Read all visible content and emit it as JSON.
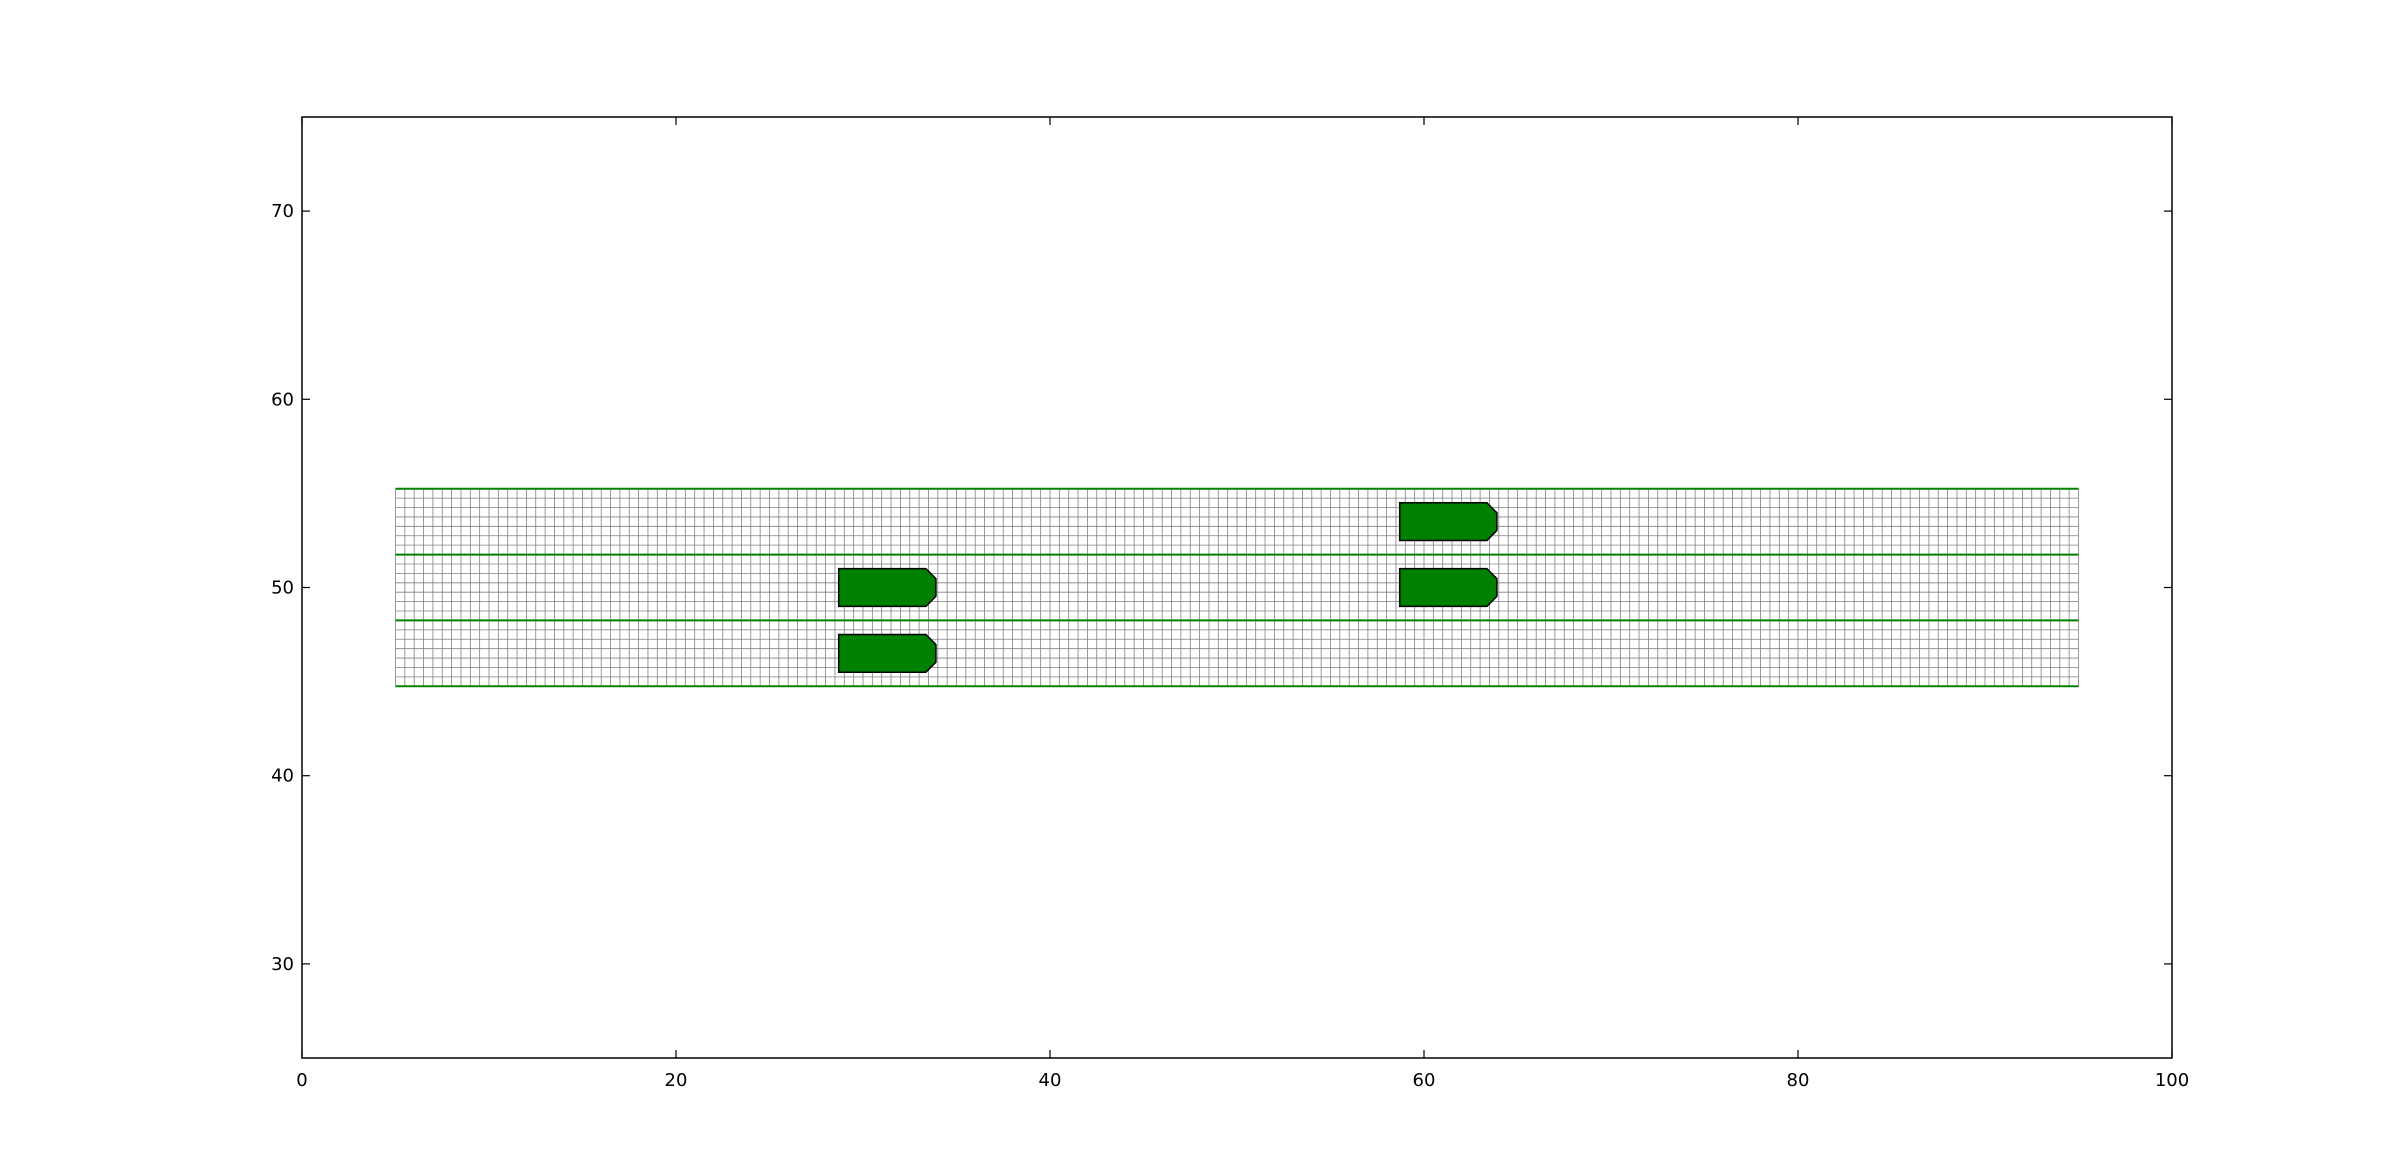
{
  "chart_data": {
    "type": "scatter",
    "title": "",
    "xlabel": "",
    "ylabel": "",
    "xlim": [
      0,
      100
    ],
    "ylim": [
      25,
      75
    ],
    "x_ticks": [
      0,
      20,
      40,
      60,
      80,
      100
    ],
    "y_ticks": [
      30,
      40,
      50,
      60,
      70
    ],
    "x_tick_labels": [
      "0",
      "20",
      "40",
      "60",
      "80",
      "100"
    ],
    "y_tick_labels": [
      "30",
      "40",
      "50",
      "60",
      "70"
    ],
    "road": {
      "x_range": [
        5,
        95
      ],
      "lane_boundaries_y": [
        44.75,
        48.25,
        51.75,
        55.25
      ],
      "grid_cell_x": 0.5,
      "grid_cell_y": 0.5,
      "lane_line_color": "#008000",
      "grid_line_color": "#808080"
    },
    "vehicles": [
      {
        "x_range": [
          28.7,
          33.9
        ],
        "y_range": [
          45.5,
          47.5
        ],
        "color": "#008000"
      },
      {
        "x_range": [
          28.7,
          33.9
        ],
        "y_range": [
          49.0,
          51.0
        ],
        "color": "#008000"
      },
      {
        "x_range": [
          58.7,
          63.9
        ],
        "y_range": [
          49.0,
          51.0
        ],
        "color": "#008000"
      },
      {
        "x_range": [
          58.7,
          63.9
        ],
        "y_range": [
          52.5,
          54.5
        ],
        "color": "#008000"
      }
    ],
    "grid": false,
    "legend": "none"
  }
}
